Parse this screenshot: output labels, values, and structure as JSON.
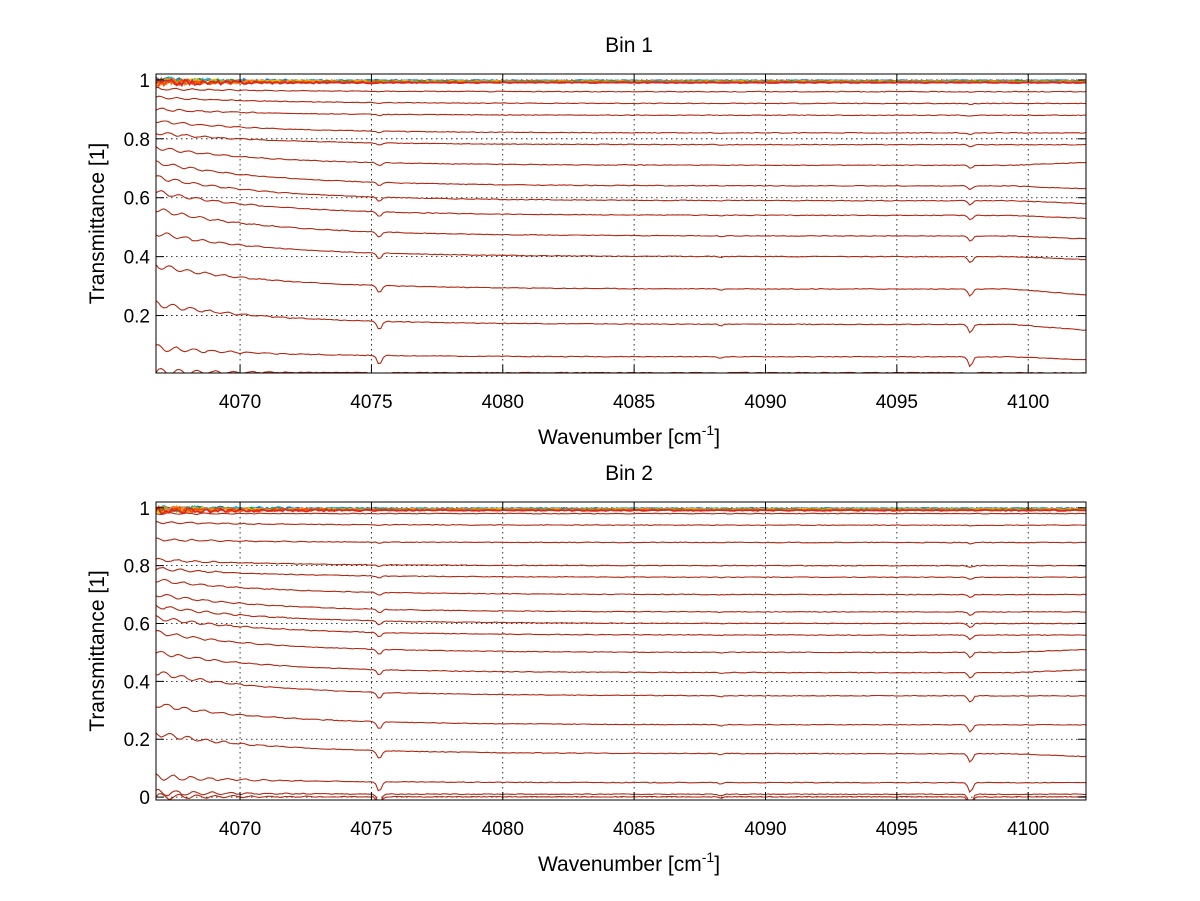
{
  "chart_data": [
    {
      "type": "line",
      "title": "Bin 1",
      "xlabel": "Wavenumber [cm",
      "xlabel_sup": "-1",
      "xlabel_end": "]",
      "ylabel": "Transmittance [1]",
      "xlim": [
        4066.8,
        4102.2
      ],
      "ylim": [
        0.005,
        1.02
      ],
      "xticks": [
        4070,
        4075,
        4080,
        4085,
        4090,
        4095,
        4100
      ],
      "xtick_labels": [
        "4070",
        "4075",
        "4080",
        "4085",
        "4090",
        "4095",
        "4100"
      ],
      "yticks": [
        0.2,
        0.4,
        0.6,
        0.8,
        1
      ],
      "ytick_labels": [
        "0.2",
        "0.4",
        "0.6",
        "0.8",
        "1"
      ],
      "grid": true,
      "line_color": "#b22a14",
      "absorption_lines": [
        4075.3,
        4097.8
      ],
      "series": [
        {
          "values": [
            0.009,
            0.006,
            0.005
          ]
        },
        {
          "values": [
            0.09,
            0.06,
            0.05
          ]
        },
        {
          "values": [
            0.24,
            0.17,
            0.15
          ]
        },
        {
          "values": [
            0.37,
            0.29,
            0.27
          ]
        },
        {
          "values": [
            0.48,
            0.4,
            0.39
          ]
        },
        {
          "values": [
            0.56,
            0.47,
            0.46
          ]
        },
        {
          "values": [
            0.62,
            0.54,
            0.53
          ]
        },
        {
          "values": [
            0.67,
            0.59,
            0.58
          ]
        },
        {
          "values": [
            0.72,
            0.64,
            0.63
          ]
        },
        {
          "values": [
            0.77,
            0.71,
            0.72
          ]
        },
        {
          "values": [
            0.82,
            0.78,
            0.78
          ]
        },
        {
          "values": [
            0.86,
            0.82,
            0.82
          ]
        },
        {
          "values": [
            0.9,
            0.88,
            0.88
          ]
        },
        {
          "values": [
            0.94,
            0.92,
            0.92
          ]
        },
        {
          "values": [
            0.97,
            0.96,
            0.96
          ]
        },
        {
          "values": [
            0.99,
            0.99,
            0.99
          ]
        },
        {
          "values": [
            1.0,
            0.995,
            0.995
          ]
        }
      ]
    },
    {
      "type": "line",
      "title": "Bin 2",
      "xlabel": "Wavenumber [cm",
      "xlabel_sup": "-1",
      "xlabel_end": "]",
      "ylabel": "Transmittance [1]",
      "xlim": [
        4066.8,
        4102.2
      ],
      "ylim": [
        -0.01,
        1.02
      ],
      "xticks": [
        4070,
        4075,
        4080,
        4085,
        4090,
        4095,
        4100
      ],
      "xtick_labels": [
        "4070",
        "4075",
        "4080",
        "4085",
        "4090",
        "4095",
        "4100"
      ],
      "yticks": [
        0,
        0.2,
        0.4,
        0.6,
        0.8,
        1
      ],
      "ytick_labels": [
        "0",
        "0.2",
        "0.4",
        "0.6",
        "0.8",
        "1"
      ],
      "grid": true,
      "line_color": "#b22a14",
      "absorption_lines": [
        4075.3,
        4097.8
      ],
      "series": [
        {
          "values": [
            0.002,
            0.001,
            0.001
          ]
        },
        {
          "values": [
            0.015,
            0.01,
            0.01
          ]
        },
        {
          "values": [
            0.07,
            0.05,
            0.05
          ]
        },
        {
          "values": [
            0.22,
            0.15,
            0.14
          ]
        },
        {
          "values": [
            0.32,
            0.25,
            0.25
          ]
        },
        {
          "values": [
            0.43,
            0.35,
            0.35
          ]
        },
        {
          "values": [
            0.5,
            0.43,
            0.44
          ]
        },
        {
          "values": [
            0.57,
            0.5,
            0.51
          ]
        },
        {
          "values": [
            0.62,
            0.56,
            0.56
          ]
        },
        {
          "values": [
            0.66,
            0.6,
            0.6
          ]
        },
        {
          "values": [
            0.7,
            0.64,
            0.64
          ]
        },
        {
          "values": [
            0.75,
            0.7,
            0.7
          ]
        },
        {
          "values": [
            0.79,
            0.76,
            0.76
          ]
        },
        {
          "values": [
            0.82,
            0.8,
            0.8
          ]
        },
        {
          "values": [
            0.89,
            0.88,
            0.88
          ]
        },
        {
          "values": [
            0.95,
            0.94,
            0.94
          ]
        },
        {
          "values": [
            0.98,
            0.98,
            0.98
          ]
        },
        {
          "values": [
            1.0,
            0.995,
            0.995
          ]
        }
      ]
    }
  ]
}
